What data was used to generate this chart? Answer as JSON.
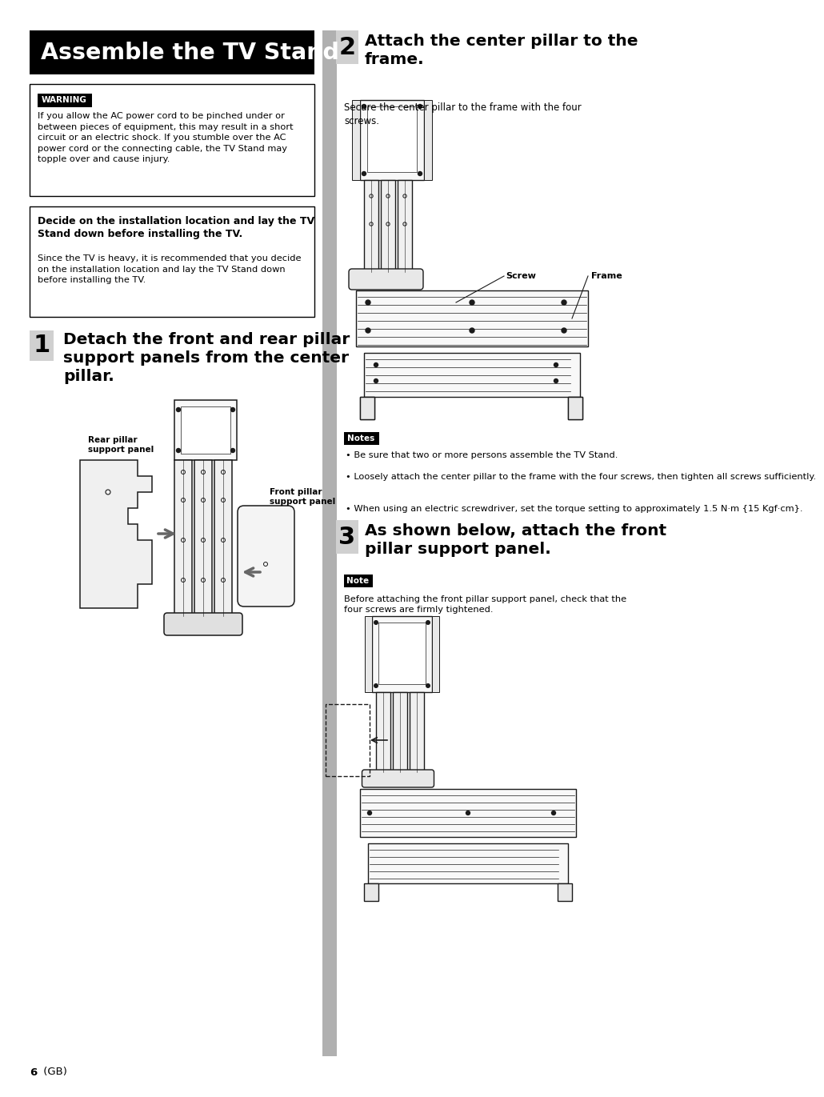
{
  "page_bg": "#ffffff",
  "title_text": "Assemble the TV Stand",
  "title_bg": "#000000",
  "title_fg": "#ffffff",
  "warning_label": "WARNING",
  "warning_bg": "#000000",
  "warning_fg": "#ffffff",
  "warning_text": "If you allow the AC power cord to be pinched under or\nbetween pieces of equipment, this may result in a short\ncircuit or an electric shock. If you stumble over the AC\npower cord or the connecting cable, the TV Stand may\ntopple over and cause injury.",
  "decide_bold": "Decide on the installation location and lay the TV\nStand down before installing the TV.",
  "decide_text": "Since the TV is heavy, it is recommended that you decide\non the installation location and lay the TV Stand down\nbefore installing the TV.",
  "step1_num": "1",
  "step1_heading": "Detach the front and rear pillar\nsupport panels from the center\npillar.",
  "step1_label1": "Rear pillar\nsupport panel",
  "step1_label2": "Front pillar\nsupport panel",
  "step2_num": "2",
  "step2_heading": "Attach the center pillar to the\nframe.",
  "step2_desc": "Secure the center pillar to the frame with the four\nscrews.",
  "step2_label1": "Screw",
  "step2_label2": "Frame",
  "notes_label": "Notes",
  "notes_bg": "#000000",
  "notes_fg": "#ffffff",
  "note1": "Be sure that two or more persons assemble the TV Stand.",
  "note2": "Loosely attach the center pillar to the frame with the four screws, then tighten all screws sufficiently.",
  "note3": "When using an electric screwdriver, set the torque setting to approximately 1.5 N·m {15 Kgf·cm}.",
  "step3_num": "3",
  "step3_heading": "As shown below, attach the front\npillar support panel.",
  "note_label": "Note",
  "note_bg": "#000000",
  "note_fg": "#ffffff",
  "step3_note": "Before attaching the front pillar support panel, check that the\nfour screws are firmly tightened.",
  "page_num": "6",
  "page_suffix": " (GB)",
  "divider_color": "#b0b0b0",
  "step_num_bg": "#d0d0d0"
}
